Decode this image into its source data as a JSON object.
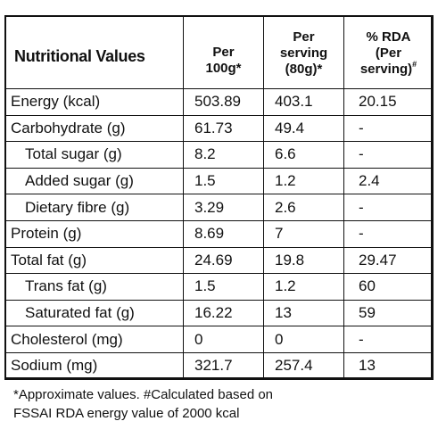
{
  "table": {
    "header": {
      "title": "Nutritional Values",
      "per100_line1": "Per",
      "per100_line2": "100g*",
      "serving_line1": "Per",
      "serving_line2": "serving",
      "serving_line3": "(80g)*",
      "rda_line1": "% RDA",
      "rda_line2": "(Per",
      "rda_line3": "serving)",
      "rda_mark": "#"
    },
    "rows": [
      {
        "name": "Energy (kcal)",
        "per100g": "503.89",
        "per_serving": "403.1",
        "rda": "20.15",
        "indent": false
      },
      {
        "name": "Carbohydrate (g)",
        "per100g": "61.73",
        "per_serving": "49.4",
        "rda": "-",
        "indent": false
      },
      {
        "name": "Total sugar (g)",
        "per100g": "8.2",
        "per_serving": "6.6",
        "rda": "-",
        "indent": true
      },
      {
        "name": "Added sugar (g)",
        "per100g": "1.5",
        "per_serving": "1.2",
        "rda": "2.4",
        "indent": true
      },
      {
        "name": "Dietary fibre (g)",
        "per100g": "3.29",
        "per_serving": "2.6",
        "rda": "-",
        "indent": true
      },
      {
        "name": "Protein (g)",
        "per100g": "8.69",
        "per_serving": "7",
        "rda": "-",
        "indent": false
      },
      {
        "name": "Total fat (g)",
        "per100g": "24.69",
        "per_serving": "19.8",
        "rda": "29.47",
        "indent": false
      },
      {
        "name": "Trans fat (g)",
        "per100g": "1.5",
        "per_serving": "1.2",
        "rda": "60",
        "indent": true
      },
      {
        "name": "Saturated fat (g)",
        "per100g": "16.22",
        "per_serving": "13",
        "rda": "59",
        "indent": true
      },
      {
        "name": "Cholesterol (mg)",
        "per100g": "0",
        "per_serving": "0",
        "rda": "-",
        "indent": false
      },
      {
        "name": "Sodium (mg)",
        "per100g": "321.7",
        "per_serving": "257.4",
        "rda": "13",
        "indent": false
      }
    ]
  },
  "footnote": {
    "line1": "*Approximate values. #Calculated based on",
    "line2": "FSSAI RDA energy value of 2000 kcal"
  }
}
